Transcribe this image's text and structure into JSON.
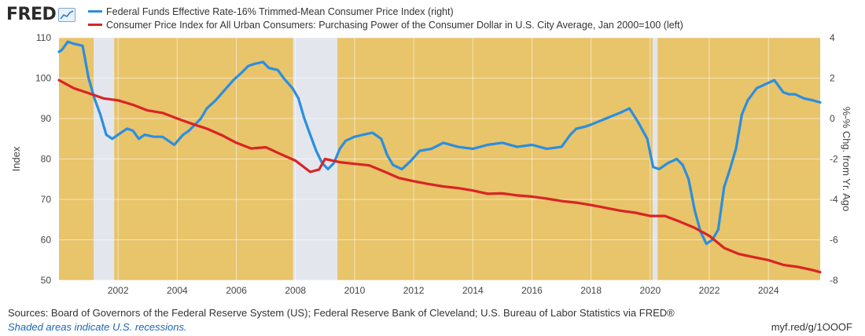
{
  "header": {
    "logo_text": "FRED",
    "logo_icon": "sparkline-chart-icon"
  },
  "footer": {
    "sources": "Sources: Board of Governors of the Federal Reserve System (US); Federal Reserve Bank of Cleveland; U.S. Bureau of Labor Statistics via FRED®",
    "recession_note": "Shaded areas indicate U.S. recessions.",
    "short_url": "myf.red/g/1OOOF"
  },
  "colors": {
    "plot_background": "#e8c46a",
    "recession_shade": "#e3e6ec",
    "series_blue": "#2a8ee0",
    "series_red": "#d92424"
  },
  "chart_data": {
    "type": "line",
    "x_axis": {
      "range": [
        2000.0,
        2025.75
      ],
      "ticks": [
        "2002",
        "2004",
        "2006",
        "2008",
        "2010",
        "2012",
        "2014",
        "2016",
        "2018",
        "2020",
        "2022",
        "2024"
      ]
    },
    "y_left": {
      "label": "Index",
      "range": [
        50,
        110
      ],
      "ticks": [
        "50",
        "60",
        "70",
        "80",
        "90",
        "100",
        "110"
      ]
    },
    "y_right": {
      "label": "%-% Chg. from Yr. Ago",
      "range": [
        -8,
        4
      ],
      "ticks": [
        "-8",
        "-6",
        "-4",
        "-2",
        "0",
        "2",
        "4"
      ]
    },
    "grid": true,
    "recessions": [
      {
        "start": 2001.17,
        "end": 2001.87
      },
      {
        "start": 2007.92,
        "end": 2009.42
      },
      {
        "start": 2020.08,
        "end": 2020.25
      }
    ],
    "series": [
      {
        "name": "Federal Funds Effective Rate-16% Trimmed-Mean Consumer Price Index (right)",
        "axis": "right",
        "color": "#2a8ee0",
        "x": [
          2000.0,
          2000.1,
          2000.3,
          2000.5,
          2000.8,
          2001.0,
          2001.2,
          2001.4,
          2001.6,
          2001.8,
          2002.0,
          2002.3,
          2002.5,
          2002.7,
          2002.9,
          2003.2,
          2003.5,
          2003.7,
          2003.9,
          2004.2,
          2004.4,
          2004.6,
          2004.8,
          2005.0,
          2005.3,
          2005.6,
          2005.9,
          2006.2,
          2006.4,
          2006.6,
          2006.9,
          2007.1,
          2007.4,
          2007.6,
          2007.9,
          2008.1,
          2008.3,
          2008.5,
          2008.7,
          2008.9,
          2009.1,
          2009.3,
          2009.5,
          2009.7,
          2010.0,
          2010.3,
          2010.6,
          2010.9,
          2011.1,
          2011.3,
          2011.6,
          2011.9,
          2012.2,
          2012.6,
          2013.0,
          2013.5,
          2014.0,
          2014.5,
          2015.0,
          2015.5,
          2016.0,
          2016.5,
          2017.0,
          2017.3,
          2017.5,
          2017.8,
          2018.0,
          2018.5,
          2019.0,
          2019.3,
          2019.6,
          2019.9,
          2020.1,
          2020.3,
          2020.6,
          2020.9,
          2021.1,
          2021.3,
          2021.5,
          2021.7,
          2021.9,
          2022.1,
          2022.3,
          2022.5,
          2022.7,
          2022.9,
          2023.1,
          2023.3,
          2023.6,
          2023.9,
          2024.2,
          2024.5,
          2024.7,
          2024.9,
          2025.2,
          2025.5,
          2025.75
        ],
        "values": [
          3.3,
          3.4,
          3.8,
          3.7,
          3.6,
          2.0,
          1.0,
          0.2,
          -0.8,
          -1.0,
          -0.8,
          -0.5,
          -0.6,
          -1.0,
          -0.8,
          -0.9,
          -0.9,
          -1.1,
          -1.3,
          -0.8,
          -0.6,
          -0.3,
          0.0,
          0.5,
          0.9,
          1.4,
          1.9,
          2.3,
          2.6,
          2.7,
          2.8,
          2.5,
          2.4,
          2.0,
          1.5,
          1.0,
          0.0,
          -0.8,
          -1.6,
          -2.2,
          -2.5,
          -2.2,
          -1.5,
          -1.1,
          -0.9,
          -0.8,
          -0.7,
          -1.0,
          -1.8,
          -2.3,
          -2.5,
          -2.1,
          -1.6,
          -1.5,
          -1.2,
          -1.4,
          -1.5,
          -1.3,
          -1.2,
          -1.4,
          -1.3,
          -1.5,
          -1.4,
          -0.8,
          -0.5,
          -0.4,
          -0.3,
          0.0,
          0.3,
          0.5,
          -0.2,
          -1.0,
          -2.4,
          -2.5,
          -2.2,
          -2.0,
          -2.3,
          -3.0,
          -4.5,
          -5.6,
          -6.2,
          -6.0,
          -5.5,
          -3.4,
          -2.5,
          -1.5,
          0.2,
          0.9,
          1.5,
          1.7,
          1.9,
          1.3,
          1.2,
          1.2,
          1.0,
          0.9,
          0.8
        ]
      },
      {
        "name": "Consumer Price Index for All Urban Consumers: Purchasing Power of the Consumer Dollar in U.S. City Average, Jan 2000=100 (left)",
        "axis": "left",
        "color": "#d92424",
        "x": [
          2000.0,
          2000.5,
          2001.0,
          2001.5,
          2002.0,
          2002.5,
          2003.0,
          2003.5,
          2004.0,
          2004.5,
          2005.0,
          2005.5,
          2006.0,
          2006.5,
          2007.0,
          2007.5,
          2008.0,
          2008.5,
          2008.8,
          2009.0,
          2009.5,
          2010.0,
          2010.5,
          2011.0,
          2011.5,
          2012.0,
          2012.5,
          2013.0,
          2013.5,
          2014.0,
          2014.5,
          2015.0,
          2015.5,
          2016.0,
          2016.5,
          2017.0,
          2017.5,
          2018.0,
          2018.5,
          2019.0,
          2019.5,
          2020.0,
          2020.5,
          2021.0,
          2021.5,
          2022.0,
          2022.5,
          2023.0,
          2023.5,
          2024.0,
          2024.5,
          2025.0,
          2025.5,
          2025.75
        ],
        "values": [
          99.5,
          97.5,
          96.3,
          95.0,
          94.5,
          93.4,
          92.0,
          91.4,
          90.0,
          88.7,
          87.5,
          85.9,
          84.0,
          82.6,
          82.9,
          81.2,
          79.6,
          76.8,
          77.4,
          80.0,
          79.2,
          78.8,
          78.4,
          76.9,
          75.3,
          74.5,
          73.8,
          73.2,
          72.8,
          72.2,
          71.4,
          71.5,
          71.0,
          70.7,
          70.2,
          69.6,
          69.2,
          68.6,
          67.9,
          67.2,
          66.7,
          65.9,
          65.9,
          64.5,
          63.0,
          61.0,
          58.0,
          56.5,
          55.7,
          55.0,
          53.8,
          53.3,
          52.5,
          52.0
        ]
      }
    ]
  }
}
